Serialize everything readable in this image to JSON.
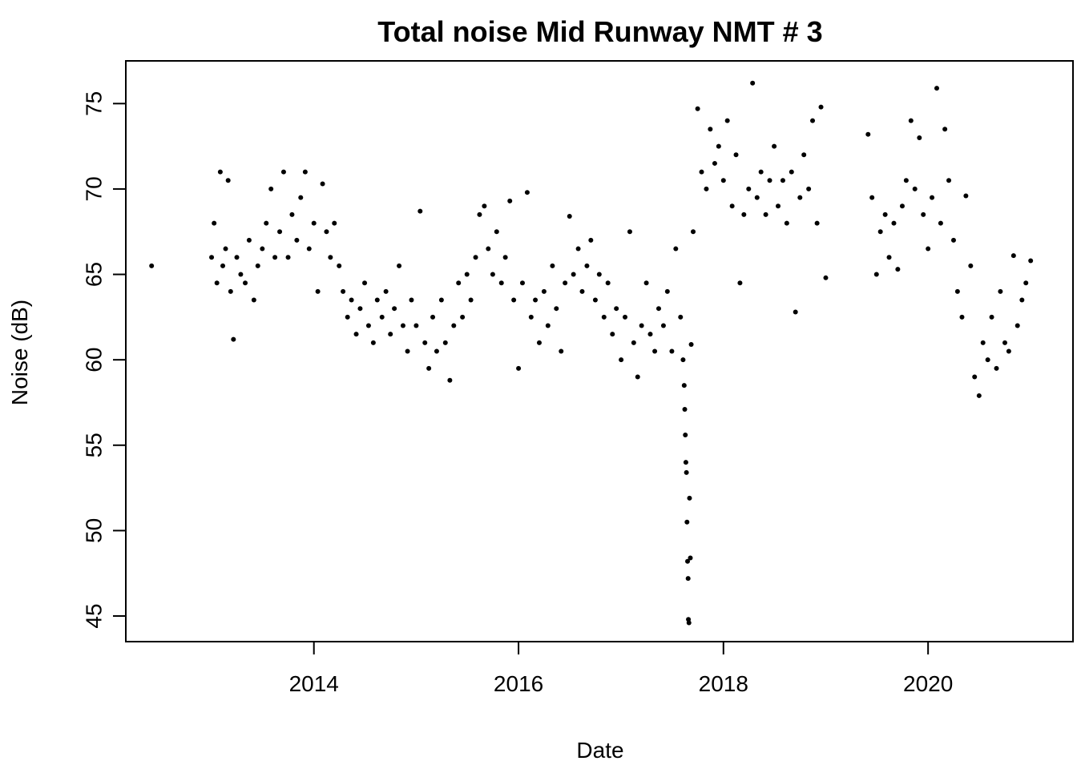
{
  "chart_data": {
    "type": "scatter",
    "title": "Total noise Mid Runway NMT # 3",
    "xlabel": "Date",
    "ylabel": "Noise (dB)",
    "xlim": [
      "2012-03-01",
      "2021-06-01"
    ],
    "ylim": [
      43.5,
      77.5
    ],
    "x_ticks": [
      "2014",
      "2016",
      "2018",
      "2020"
    ],
    "y_ticks": [
      "45",
      "50",
      "55",
      "60",
      "65",
      "70",
      "75"
    ],
    "grid": false,
    "legend": "none",
    "point_color": "#000000",
    "series": [
      {
        "points": [
          [
            "2012-06-01",
            65.5
          ],
          [
            "2013-01-01",
            66.0
          ],
          [
            "2013-01-10",
            68.0
          ],
          [
            "2013-01-20",
            64.5
          ],
          [
            "2013-02-01",
            71.0
          ],
          [
            "2013-02-10",
            65.5
          ],
          [
            "2013-02-20",
            66.5
          ],
          [
            "2013-03-01",
            70.5
          ],
          [
            "2013-03-10",
            64.0
          ],
          [
            "2013-03-20",
            61.2
          ],
          [
            "2013-04-01",
            66.0
          ],
          [
            "2013-04-15",
            65.0
          ],
          [
            "2013-05-01",
            64.5
          ],
          [
            "2013-05-15",
            67.0
          ],
          [
            "2013-06-01",
            63.5
          ],
          [
            "2013-06-15",
            65.5
          ],
          [
            "2013-07-01",
            66.5
          ],
          [
            "2013-07-15",
            68.0
          ],
          [
            "2013-08-01",
            70.0
          ],
          [
            "2013-08-15",
            66.0
          ],
          [
            "2013-09-01",
            67.5
          ],
          [
            "2013-09-15",
            71.0
          ],
          [
            "2013-10-01",
            66.0
          ],
          [
            "2013-10-15",
            68.5
          ],
          [
            "2013-11-01",
            67.0
          ],
          [
            "2013-11-15",
            69.5
          ],
          [
            "2013-12-01",
            71.0
          ],
          [
            "2013-12-15",
            66.5
          ],
          [
            "2014-01-01",
            68.0
          ],
          [
            "2014-01-15",
            64.0
          ],
          [
            "2014-02-01",
            70.3
          ],
          [
            "2014-02-15",
            67.5
          ],
          [
            "2014-03-01",
            66.0
          ],
          [
            "2014-03-15",
            68.0
          ],
          [
            "2014-04-01",
            65.5
          ],
          [
            "2014-04-15",
            64.0
          ],
          [
            "2014-05-01",
            62.5
          ],
          [
            "2014-05-15",
            63.5
          ],
          [
            "2014-06-01",
            61.5
          ],
          [
            "2014-06-15",
            63.0
          ],
          [
            "2014-07-01",
            64.5
          ],
          [
            "2014-07-15",
            62.0
          ],
          [
            "2014-08-01",
            61.0
          ],
          [
            "2014-08-15",
            63.5
          ],
          [
            "2014-09-01",
            62.5
          ],
          [
            "2014-09-15",
            64.0
          ],
          [
            "2014-10-01",
            61.5
          ],
          [
            "2014-10-15",
            63.0
          ],
          [
            "2014-11-01",
            65.5
          ],
          [
            "2014-11-15",
            62.0
          ],
          [
            "2014-12-01",
            60.5
          ],
          [
            "2014-12-15",
            63.5
          ],
          [
            "2015-01-01",
            62.0
          ],
          [
            "2015-01-15",
            68.7
          ],
          [
            "2015-02-01",
            61.0
          ],
          [
            "2015-02-15",
            59.5
          ],
          [
            "2015-03-01",
            62.5
          ],
          [
            "2015-03-15",
            60.5
          ],
          [
            "2015-04-01",
            63.5
          ],
          [
            "2015-04-15",
            61.0
          ],
          [
            "2015-05-01",
            58.8
          ],
          [
            "2015-05-15",
            62.0
          ],
          [
            "2015-06-01",
            64.5
          ],
          [
            "2015-06-15",
            62.5
          ],
          [
            "2015-07-01",
            65.0
          ],
          [
            "2015-07-15",
            63.5
          ],
          [
            "2015-08-01",
            66.0
          ],
          [
            "2015-08-15",
            68.5
          ],
          [
            "2015-09-01",
            69.0
          ],
          [
            "2015-09-15",
            66.5
          ],
          [
            "2015-10-01",
            65.0
          ],
          [
            "2015-10-15",
            67.5
          ],
          [
            "2015-11-01",
            64.5
          ],
          [
            "2015-11-15",
            66.0
          ],
          [
            "2015-12-01",
            69.3
          ],
          [
            "2015-12-15",
            63.5
          ],
          [
            "2016-01-01",
            59.5
          ],
          [
            "2016-01-15",
            64.5
          ],
          [
            "2016-02-01",
            69.8
          ],
          [
            "2016-02-15",
            62.5
          ],
          [
            "2016-03-01",
            63.5
          ],
          [
            "2016-03-15",
            61.0
          ],
          [
            "2016-04-01",
            64.0
          ],
          [
            "2016-04-15",
            62.0
          ],
          [
            "2016-05-01",
            65.5
          ],
          [
            "2016-05-15",
            63.0
          ],
          [
            "2016-06-01",
            60.5
          ],
          [
            "2016-06-15",
            64.5
          ],
          [
            "2016-07-01",
            68.4
          ],
          [
            "2016-07-15",
            65.0
          ],
          [
            "2016-08-01",
            66.5
          ],
          [
            "2016-08-15",
            64.0
          ],
          [
            "2016-09-01",
            65.5
          ],
          [
            "2016-09-15",
            67.0
          ],
          [
            "2016-10-01",
            63.5
          ],
          [
            "2016-10-15",
            65.0
          ],
          [
            "2016-11-01",
            62.5
          ],
          [
            "2016-11-15",
            64.5
          ],
          [
            "2016-12-01",
            61.5
          ],
          [
            "2016-12-15",
            63.0
          ],
          [
            "2017-01-01",
            60.0
          ],
          [
            "2017-01-15",
            62.5
          ],
          [
            "2017-02-01",
            67.5
          ],
          [
            "2017-02-15",
            61.0
          ],
          [
            "2017-03-01",
            59.0
          ],
          [
            "2017-03-15",
            62.0
          ],
          [
            "2017-04-01",
            64.5
          ],
          [
            "2017-04-15",
            61.5
          ],
          [
            "2017-05-01",
            60.5
          ],
          [
            "2017-05-15",
            63.0
          ],
          [
            "2017-06-01",
            62.0
          ],
          [
            "2017-06-15",
            64.0
          ],
          [
            "2017-07-01",
            60.5
          ],
          [
            "2017-07-15",
            66.5
          ],
          [
            "2017-08-01",
            62.5
          ],
          [
            "2017-08-10",
            60.0
          ],
          [
            "2017-08-14",
            58.5
          ],
          [
            "2017-08-16",
            57.1
          ],
          [
            "2017-08-18",
            55.6
          ],
          [
            "2017-08-20",
            54.0
          ],
          [
            "2017-08-22",
            53.4
          ],
          [
            "2017-08-24",
            50.5
          ],
          [
            "2017-08-26",
            48.2
          ],
          [
            "2017-08-28",
            47.2
          ],
          [
            "2017-08-29",
            44.8
          ],
          [
            "2017-08-31",
            44.6
          ],
          [
            "2017-09-02",
            51.9
          ],
          [
            "2017-09-05",
            48.4
          ],
          [
            "2017-09-08",
            60.9
          ],
          [
            "2017-09-15",
            67.5
          ],
          [
            "2017-10-01",
            74.7
          ],
          [
            "2017-10-15",
            71.0
          ],
          [
            "2017-11-01",
            70.0
          ],
          [
            "2017-11-15",
            73.5
          ],
          [
            "2017-12-01",
            71.5
          ],
          [
            "2017-12-15",
            72.5
          ],
          [
            "2018-01-01",
            70.5
          ],
          [
            "2018-01-15",
            74.0
          ],
          [
            "2018-02-01",
            69.0
          ],
          [
            "2018-02-15",
            72.0
          ],
          [
            "2018-03-01",
            64.5
          ],
          [
            "2018-03-15",
            68.5
          ],
          [
            "2018-04-01",
            70.0
          ],
          [
            "2018-04-15",
            76.2
          ],
          [
            "2018-05-01",
            69.5
          ],
          [
            "2018-05-15",
            71.0
          ],
          [
            "2018-06-01",
            68.5
          ],
          [
            "2018-06-15",
            70.5
          ],
          [
            "2018-07-01",
            72.5
          ],
          [
            "2018-07-15",
            69.0
          ],
          [
            "2018-08-01",
            70.5
          ],
          [
            "2018-08-15",
            68.0
          ],
          [
            "2018-09-01",
            71.0
          ],
          [
            "2018-09-15",
            62.8
          ],
          [
            "2018-10-01",
            69.5
          ],
          [
            "2018-10-15",
            72.0
          ],
          [
            "2018-11-01",
            70.0
          ],
          [
            "2018-11-15",
            74.0
          ],
          [
            "2018-12-01",
            68.0
          ],
          [
            "2018-12-15",
            74.8
          ],
          [
            "2019-01-01",
            64.8
          ],
          [
            "2019-06-01",
            73.2
          ],
          [
            "2019-06-15",
            69.5
          ],
          [
            "2019-07-01",
            65.0
          ],
          [
            "2019-07-15",
            67.5
          ],
          [
            "2019-08-01",
            68.5
          ],
          [
            "2019-08-15",
            66.0
          ],
          [
            "2019-09-01",
            68.0
          ],
          [
            "2019-09-15",
            65.3
          ],
          [
            "2019-10-01",
            69.0
          ],
          [
            "2019-10-15",
            70.5
          ],
          [
            "2019-11-01",
            74.0
          ],
          [
            "2019-11-15",
            70.0
          ],
          [
            "2019-12-01",
            73.0
          ],
          [
            "2019-12-15",
            68.5
          ],
          [
            "2020-01-01",
            66.5
          ],
          [
            "2020-01-15",
            69.5
          ],
          [
            "2020-02-01",
            75.9
          ],
          [
            "2020-02-15",
            68.0
          ],
          [
            "2020-03-01",
            73.5
          ],
          [
            "2020-03-15",
            70.5
          ],
          [
            "2020-04-01",
            67.0
          ],
          [
            "2020-04-15",
            64.0
          ],
          [
            "2020-05-01",
            62.5
          ],
          [
            "2020-05-15",
            69.6
          ],
          [
            "2020-06-01",
            65.5
          ],
          [
            "2020-06-15",
            59.0
          ],
          [
            "2020-07-01",
            57.9
          ],
          [
            "2020-07-15",
            61.0
          ],
          [
            "2020-08-01",
            60.0
          ],
          [
            "2020-08-15",
            62.5
          ],
          [
            "2020-09-01",
            59.5
          ],
          [
            "2020-09-15",
            64.0
          ],
          [
            "2020-10-01",
            61.0
          ],
          [
            "2020-10-15",
            60.5
          ],
          [
            "2020-11-01",
            66.1
          ],
          [
            "2020-11-15",
            62.0
          ],
          [
            "2020-12-01",
            63.5
          ],
          [
            "2020-12-15",
            64.5
          ],
          [
            "2021-01-01",
            65.8
          ]
        ]
      }
    ]
  }
}
